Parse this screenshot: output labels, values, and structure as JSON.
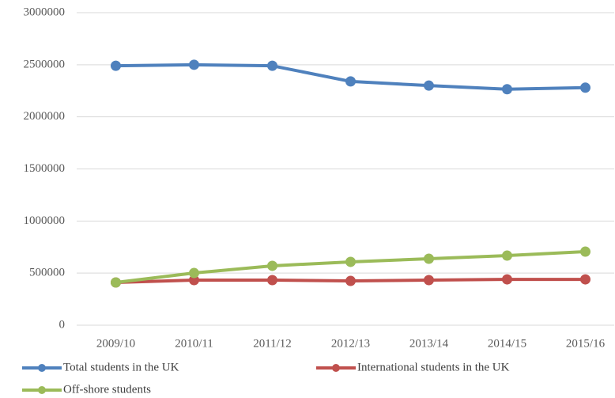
{
  "chart_data": {
    "type": "line",
    "categories": [
      "2009/10",
      "2010/11",
      "2011/12",
      "2012/13",
      "2013/14",
      "2014/15",
      "2015/16"
    ],
    "series": [
      {
        "name": "Total students in the UK",
        "color": "#4f81bd",
        "values": [
          2490000,
          2500000,
          2490000,
          2340000,
          2300000,
          2265000,
          2280000
        ]
      },
      {
        "name": "International students in the UK",
        "color": "#c0504d",
        "values": [
          410000,
          433000,
          433000,
          425000,
          433000,
          440000,
          440000
        ]
      },
      {
        "name": "Off-shore students",
        "color": "#9bbb59",
        "values": [
          410000,
          501000,
          570000,
          608000,
          638000,
          668000,
          706000
        ]
      }
    ],
    "ylim": [
      0,
      3000000
    ],
    "yticks": [
      0,
      500000,
      1000000,
      1500000,
      2000000,
      2500000,
      3000000
    ],
    "grid": true,
    "legend": "bottom"
  }
}
